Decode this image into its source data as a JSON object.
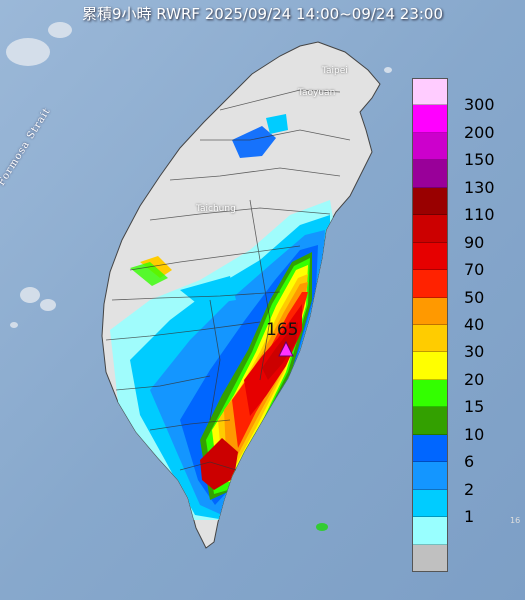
{
  "title": "累積9小時 RWRF 2025/09/24 14:00~09/24 23:00",
  "strait_label": "Formosa Strait",
  "place_labels": {
    "taipei": "Taipei",
    "taoyuan": "Taoyuan",
    "taichung": "Taichung"
  },
  "max_value_label": "165",
  "edge_label": "16",
  "legend": {
    "colors": [
      "#ffccff",
      "#ff00ff",
      "#cc00cc",
      "#990099",
      "#990000",
      "#cc0000",
      "#e60000",
      "#ff2200",
      "#ff9900",
      "#ffcc00",
      "#ffff00",
      "#33ff00",
      "#33a000",
      "#0066ff",
      "#1496ff",
      "#00ccff",
      "#99ffff",
      "#c0c0c0"
    ],
    "labels": [
      "300",
      "200",
      "150",
      "130",
      "110",
      "90",
      "70",
      "50",
      "40",
      "30",
      "20",
      "15",
      "10",
      "6",
      "2",
      "1"
    ]
  },
  "colors": {
    "sea": "#8fb0d2",
    "land": "#e2e2e2"
  }
}
